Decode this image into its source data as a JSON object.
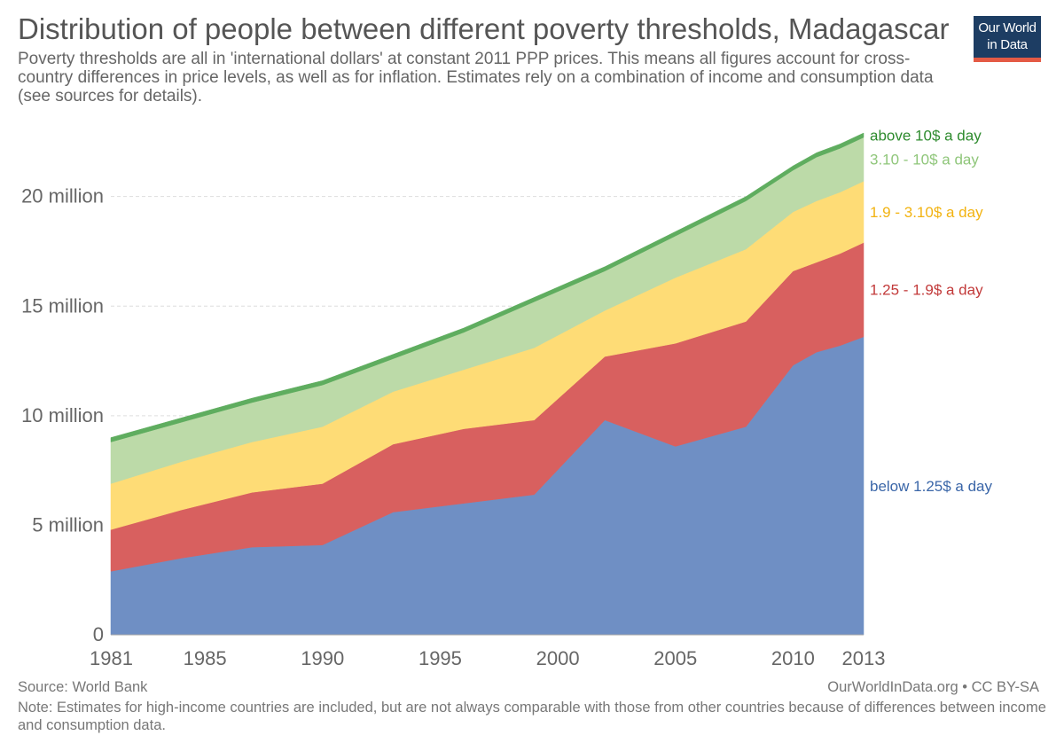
{
  "header": {
    "title": "Distribution of people between different poverty thresholds, Madagascar",
    "subtitle": "Poverty thresholds are all in 'international dollars' at constant 2011 PPP prices. This means all figures account for cross-country differences in price levels, as well as for inflation. Estimates rely on a combination of income and consumption data (see sources for details).",
    "logo_line1": "Our World",
    "logo_line2": "in Data"
  },
  "footer": {
    "source": "Source: World Bank",
    "credit": "OurWorldInData.org • CC BY-SA",
    "note": "Note: Estimates for high-income countries are included, but are not always comparable with those from other countries because of differences between income and consumption data."
  },
  "colors": {
    "below_125": "#6f8fc4",
    "b125_19": "#d8605f",
    "b19_310": "#fedc76",
    "b310_10": "#bcdaa8",
    "above_10": "#5fad5f",
    "label_below_125": "#3a66a8",
    "label_125_19": "#c23a3a",
    "label_19_310": "#f2b311",
    "label_310_10": "#8fc67a",
    "label_above_10": "#2e8b2e"
  },
  "chart_data": {
    "type": "area",
    "stacked": true,
    "title": "Distribution of people between different poverty thresholds, Madagascar",
    "x": [
      1981,
      1984,
      1987,
      1990,
      1993,
      1996,
      1999,
      2002,
      2005,
      2008,
      2010,
      2011,
      2012,
      2013
    ],
    "x_ticks": [
      1981,
      1985,
      1990,
      1995,
      2000,
      2005,
      2010,
      2013
    ],
    "y_ticks": [
      0,
      5000000,
      10000000,
      15000000,
      20000000
    ],
    "y_tick_labels": [
      "0",
      "5 million",
      "10 million",
      "15 million",
      "20 million"
    ],
    "ylim": [
      0,
      22900000
    ],
    "grid": true,
    "series": [
      {
        "name": "below 1.25$ a day",
        "color_key": "below_125",
        "label_color_key": "label_below_125",
        "values": [
          2900000,
          3500000,
          4000000,
          4100000,
          5600000,
          6000000,
          6400000,
          9800000,
          8600000,
          9500000,
          12300000,
          12900000,
          13200000,
          13600000
        ]
      },
      {
        "name": "1.25 - 1.9$ a day",
        "color_key": "b125_19",
        "label_color_key": "label_125_19",
        "values": [
          1900000,
          2200000,
          2500000,
          2800000,
          3100000,
          3400000,
          3400000,
          2900000,
          4700000,
          4800000,
          4300000,
          4100000,
          4200000,
          4300000
        ]
      },
      {
        "name": "1.9 - 3.10$ a day",
        "color_key": "b19_310",
        "label_color_key": "label_19_310",
        "values": [
          2100000,
          2200000,
          2300000,
          2600000,
          2400000,
          2700000,
          3300000,
          2100000,
          3000000,
          3300000,
          2700000,
          2800000,
          2800000,
          2800000
        ]
      },
      {
        "name": "3.10 - 10$ a day",
        "color_key": "b310_10",
        "label_color_key": "label_310_10",
        "values": [
          1900000,
          1800000,
          1800000,
          1900000,
          1500000,
          1700000,
          2100000,
          1800000,
          1900000,
          2200000,
          1900000,
          2000000,
          2000000,
          2000000
        ]
      },
      {
        "name": "above 10$ a day",
        "color_key": "above_10",
        "label_color_key": "label_above_10",
        "values": [
          200000,
          200000,
          200000,
          200000,
          200000,
          200000,
          200000,
          200000,
          200000,
          200000,
          200000,
          200000,
          200000,
          200000
        ]
      }
    ]
  }
}
